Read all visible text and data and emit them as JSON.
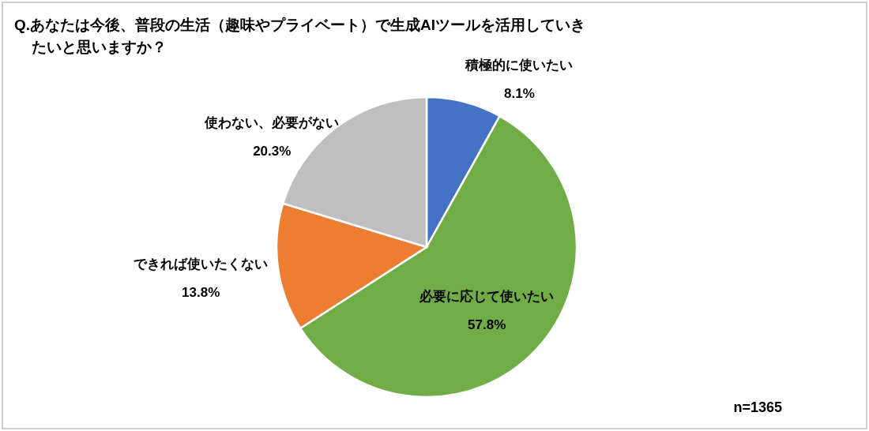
{
  "chart_data": {
    "type": "pie",
    "title": "Q.あなたは今後、普段の生活（趣味やプライベート）で生成AIツールを活用していきたいと思いますか？",
    "categories": [
      "積極的に使いたい",
      "必要に応じて使いたい",
      "できれば使いたくない",
      "使わない、必要がない"
    ],
    "values": [
      8.1,
      57.8,
      13.8,
      20.3
    ],
    "colors": [
      "#4472c4",
      "#70ad47",
      "#ed7d31",
      "#bfbfbf"
    ],
    "value_labels": [
      "8.1%",
      "57.8%",
      "13.8%",
      "20.3%"
    ],
    "annotations": [
      "n=1365"
    ]
  }
}
